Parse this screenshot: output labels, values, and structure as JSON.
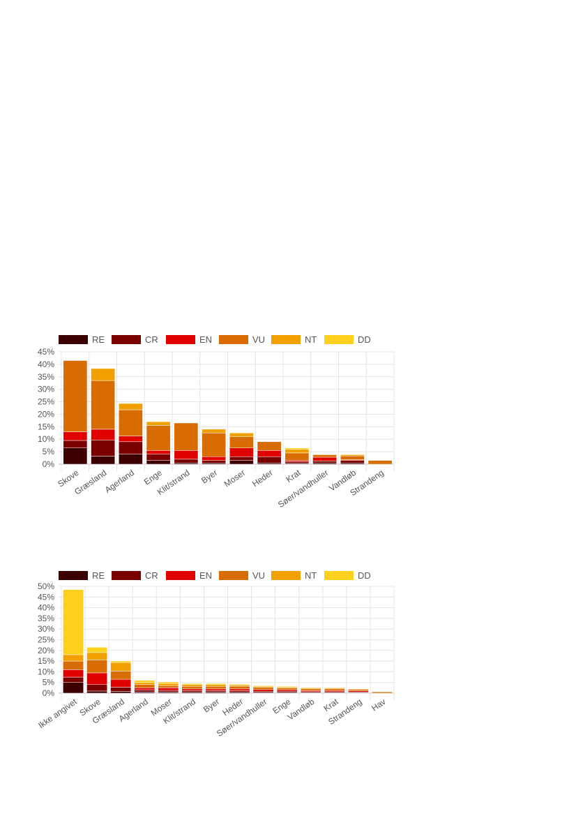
{
  "legend": {
    "labels": [
      "RE",
      "CR",
      "EN",
      "VU",
      "NT",
      "DD"
    ],
    "colors": [
      "#3d0000",
      "#7a0000",
      "#e00000",
      "#d96c00",
      "#f29f00",
      "#fdd01d"
    ]
  },
  "chart_data": [
    {
      "type": "bar",
      "stacked": true,
      "categories": [
        "Skove",
        "Græsland",
        "Agerland",
        "Enge",
        "Klit/strand",
        "Byer",
        "Moser",
        "Heder",
        "Krat",
        "Søer/vandhuller",
        "Vandløb",
        "Strandeng"
      ],
      "series": [
        {
          "name": "RE",
          "values": [
            6.5,
            3.2,
            4.0,
            1.5,
            0.5,
            0.5,
            1.5,
            0.5,
            0.3,
            0.5,
            0.5,
            0
          ]
        },
        {
          "name": "CR",
          "values": [
            3.0,
            6.5,
            5.0,
            2.5,
            1.5,
            1.0,
            1.5,
            2.5,
            0.7,
            0.8,
            1.0,
            0
          ]
        },
        {
          "name": "EN",
          "values": [
            3.5,
            4.3,
            2.3,
            1.5,
            3.5,
            1.5,
            3.5,
            2.5,
            0.5,
            1.5,
            0.3,
            0
          ]
        },
        {
          "name": "VU",
          "values": [
            28.5,
            19.5,
            10.5,
            10.0,
            11.0,
            9.5,
            4.5,
            3.5,
            3.0,
            1.0,
            1.5,
            1.5
          ]
        },
        {
          "name": "NT",
          "values": [
            0,
            4.8,
            2.5,
            1.5,
            0,
            1.5,
            1.5,
            0,
            1.5,
            0.2,
            0.5,
            0
          ]
        },
        {
          "name": "DD",
          "values": [
            0,
            0,
            0,
            0,
            0,
            0,
            0,
            0,
            0.5,
            0,
            0.2,
            0
          ]
        }
      ],
      "yticks": [
        "0%",
        "5%",
        "10%",
        "15%",
        "20%",
        "25%",
        "30%",
        "35%",
        "40%",
        "45%"
      ],
      "ylim": [
        0,
        45
      ],
      "grid": true,
      "legend_position": "top"
    },
    {
      "type": "bar",
      "stacked": true,
      "categories": [
        "Ikke angivet",
        "Skove",
        "Græsland",
        "Agerland",
        "Moser",
        "Klit/strand",
        "Byer",
        "Heder",
        "Søer/vandhuller",
        "Enge",
        "Vandløb",
        "Krat",
        "Strandeng",
        "Hav"
      ],
      "series": [
        {
          "name": "RE",
          "values": [
            5.0,
            1.0,
            0.8,
            0.5,
            0.5,
            0.4,
            0.5,
            0.4,
            0.3,
            0.3,
            0.2,
            0.2,
            0.2,
            0
          ]
        },
        {
          "name": "CR",
          "values": [
            2.5,
            3.0,
            2.0,
            1.0,
            0.8,
            0.8,
            0.7,
            0.7,
            0.6,
            0.6,
            0.5,
            0.5,
            0.4,
            0
          ]
        },
        {
          "name": "EN",
          "values": [
            3.5,
            5.5,
            3.7,
            1.0,
            1.2,
            0.8,
            0.8,
            0.9,
            0.8,
            0.7,
            0.5,
            0.6,
            0.5,
            0
          ]
        },
        {
          "name": "VU",
          "values": [
            4.0,
            6.0,
            3.8,
            1.5,
            1.0,
            1.2,
            1.2,
            1.2,
            1.0,
            0.8,
            0.8,
            0.8,
            0.7,
            0.6
          ]
        },
        {
          "name": "NT",
          "values": [
            3.0,
            3.5,
            4.0,
            1.0,
            1.0,
            0.8,
            0.8,
            0.6,
            0.5,
            0.5,
            0.5,
            0.4,
            0.3,
            0
          ]
        },
        {
          "name": "DD",
          "values": [
            30.5,
            2.5,
            0.7,
            1.0,
            0.7,
            0.5,
            0.5,
            0.4,
            0.3,
            0.3,
            0.2,
            0.2,
            0.1,
            0
          ]
        }
      ],
      "yticks": [
        "0%",
        "5%",
        "10%",
        "15%",
        "20%",
        "25%",
        "30%",
        "35%",
        "40%",
        "45%",
        "50%"
      ],
      "ylim": [
        0,
        50
      ],
      "grid": true,
      "legend_position": "top"
    }
  ]
}
